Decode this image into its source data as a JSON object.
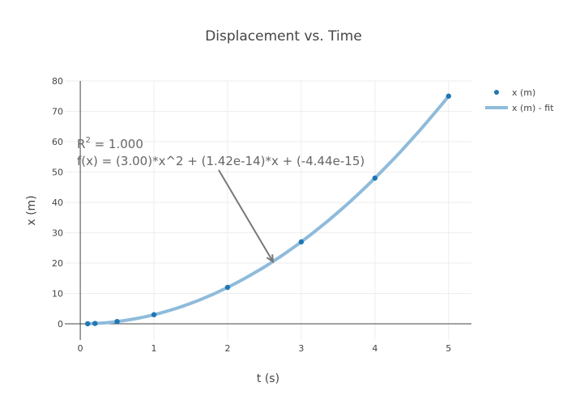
{
  "chart_data": {
    "type": "scatter",
    "title": "Displacement vs. Time",
    "xlabel": "t (s)",
    "ylabel": "x (m)",
    "xlim": [
      -0.21,
      5.31
    ],
    "ylim": [
      -5.33,
      80
    ],
    "xticks": [
      0,
      1,
      2,
      3,
      4,
      5
    ],
    "yticks": [
      0,
      10,
      20,
      30,
      40,
      50,
      60,
      70,
      80
    ],
    "grid": true,
    "legend_position": "top-right",
    "series": [
      {
        "name": "x (m)",
        "mode": "markers",
        "color": "#1f77b4",
        "x": [
          0.1,
          0.2,
          0.5,
          1,
          2,
          3,
          4,
          5
        ],
        "y": [
          0.03,
          0.12,
          0.75,
          3,
          12,
          27,
          48,
          75
        ]
      },
      {
        "name": "x (m) - fit",
        "mode": "line",
        "color": "#8fbbdb",
        "fit": {
          "a": 3.0,
          "b": 1.42e-14,
          "c": -4.44e-15
        },
        "x_range": [
          0.1,
          5
        ]
      }
    ],
    "annotation": {
      "r2_label": "R",
      "r2_sup": "2",
      "r2_value": " = 1.000",
      "equation": "f(x) = (3.00)*x^2 + (1.42e-14)*x + (-4.44e-15)",
      "arrow_to": [
        2.615,
        20.5
      ]
    }
  }
}
